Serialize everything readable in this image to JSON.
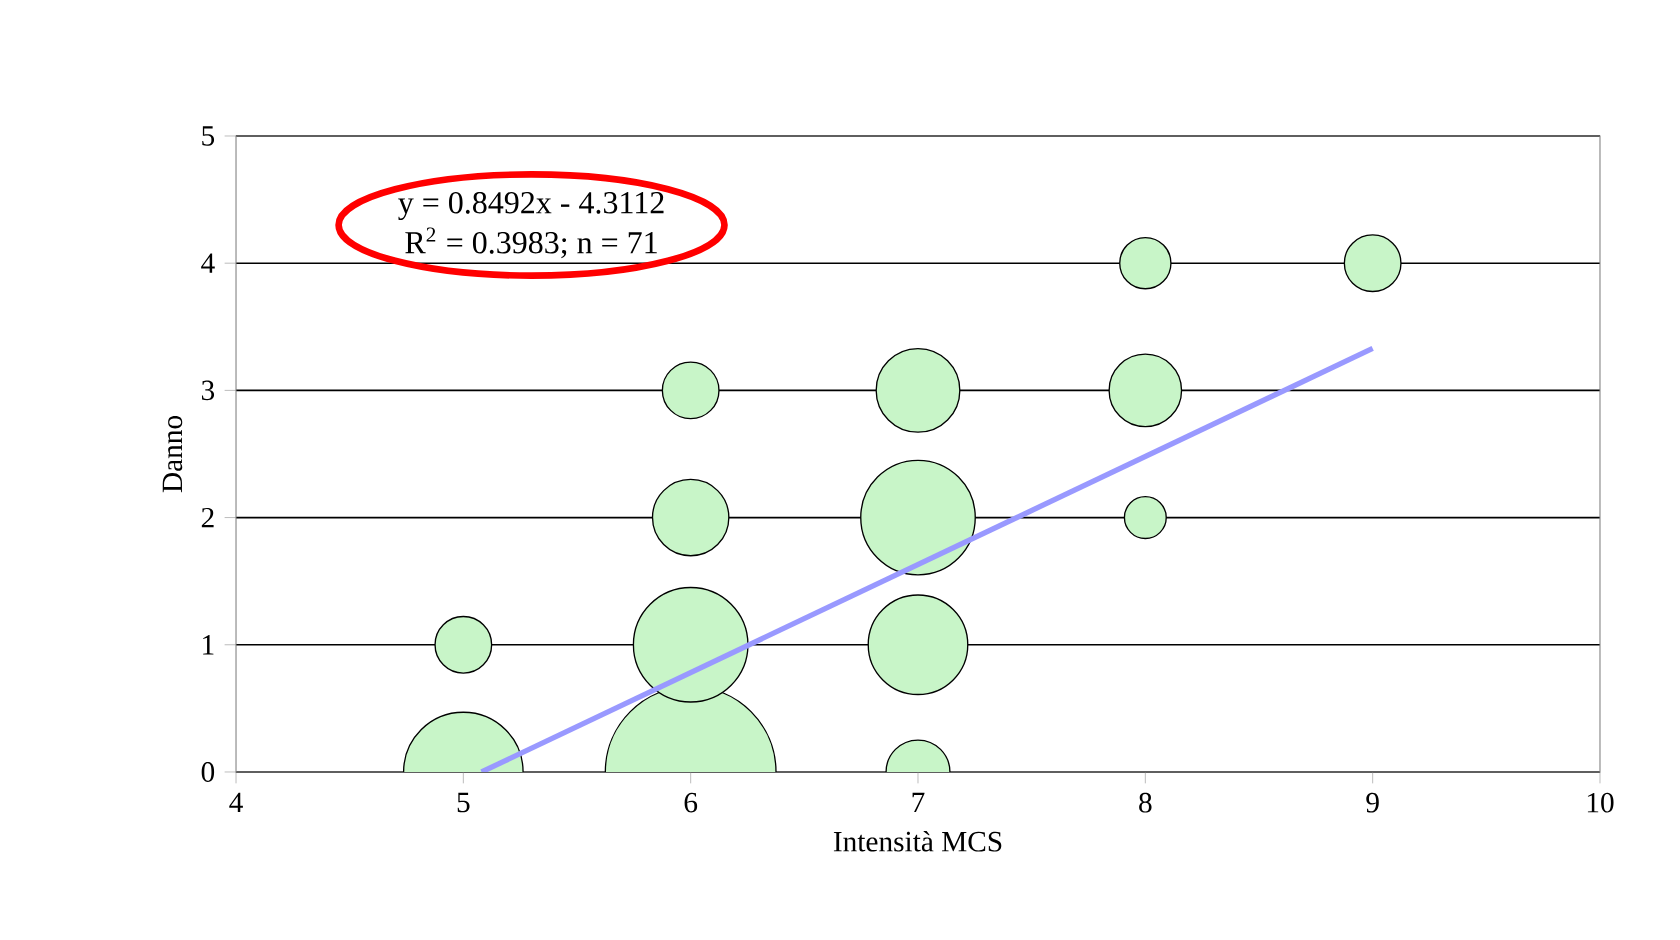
{
  "chart_data": {
    "type": "bubble",
    "xlabel": "Intensità MCS",
    "ylabel": "Danno",
    "annotations": [
      "y = 0.8492x - 4.3112",
      "R$^{2}$ = 0.3983; n = 71"
    ],
    "xlim": [
      4,
      10
    ],
    "ylim": [
      0,
      5
    ],
    "xticks": [
      4,
      5,
      6,
      7,
      8,
      9,
      10
    ],
    "yticks": [
      0,
      1,
      2,
      3,
      4,
      5
    ],
    "grid": "y",
    "series": [
      {
        "color": "#c8f5c8",
        "x": [
          5,
          5,
          6,
          6,
          6,
          6,
          7,
          7,
          7,
          7,
          8,
          8,
          8,
          9
        ],
        "values": [
          0,
          1,
          0,
          1,
          2,
          3,
          0,
          1,
          2,
          3,
          2,
          3,
          4,
          4
        ],
        "sizes": [
          0.49,
          0.11,
          1,
          0.45,
          0.2,
          0.11,
          0.14,
          0.34,
          0.45,
          0.24,
          0.06,
          0.18,
          0.09,
          0.11
        ]
      },
      {
        "type": "line",
        "color": "#9999ff",
        "x": [
          5.08,
          9
        ],
        "values": [
          0,
          3.33
        ]
      }
    ]
  }
}
